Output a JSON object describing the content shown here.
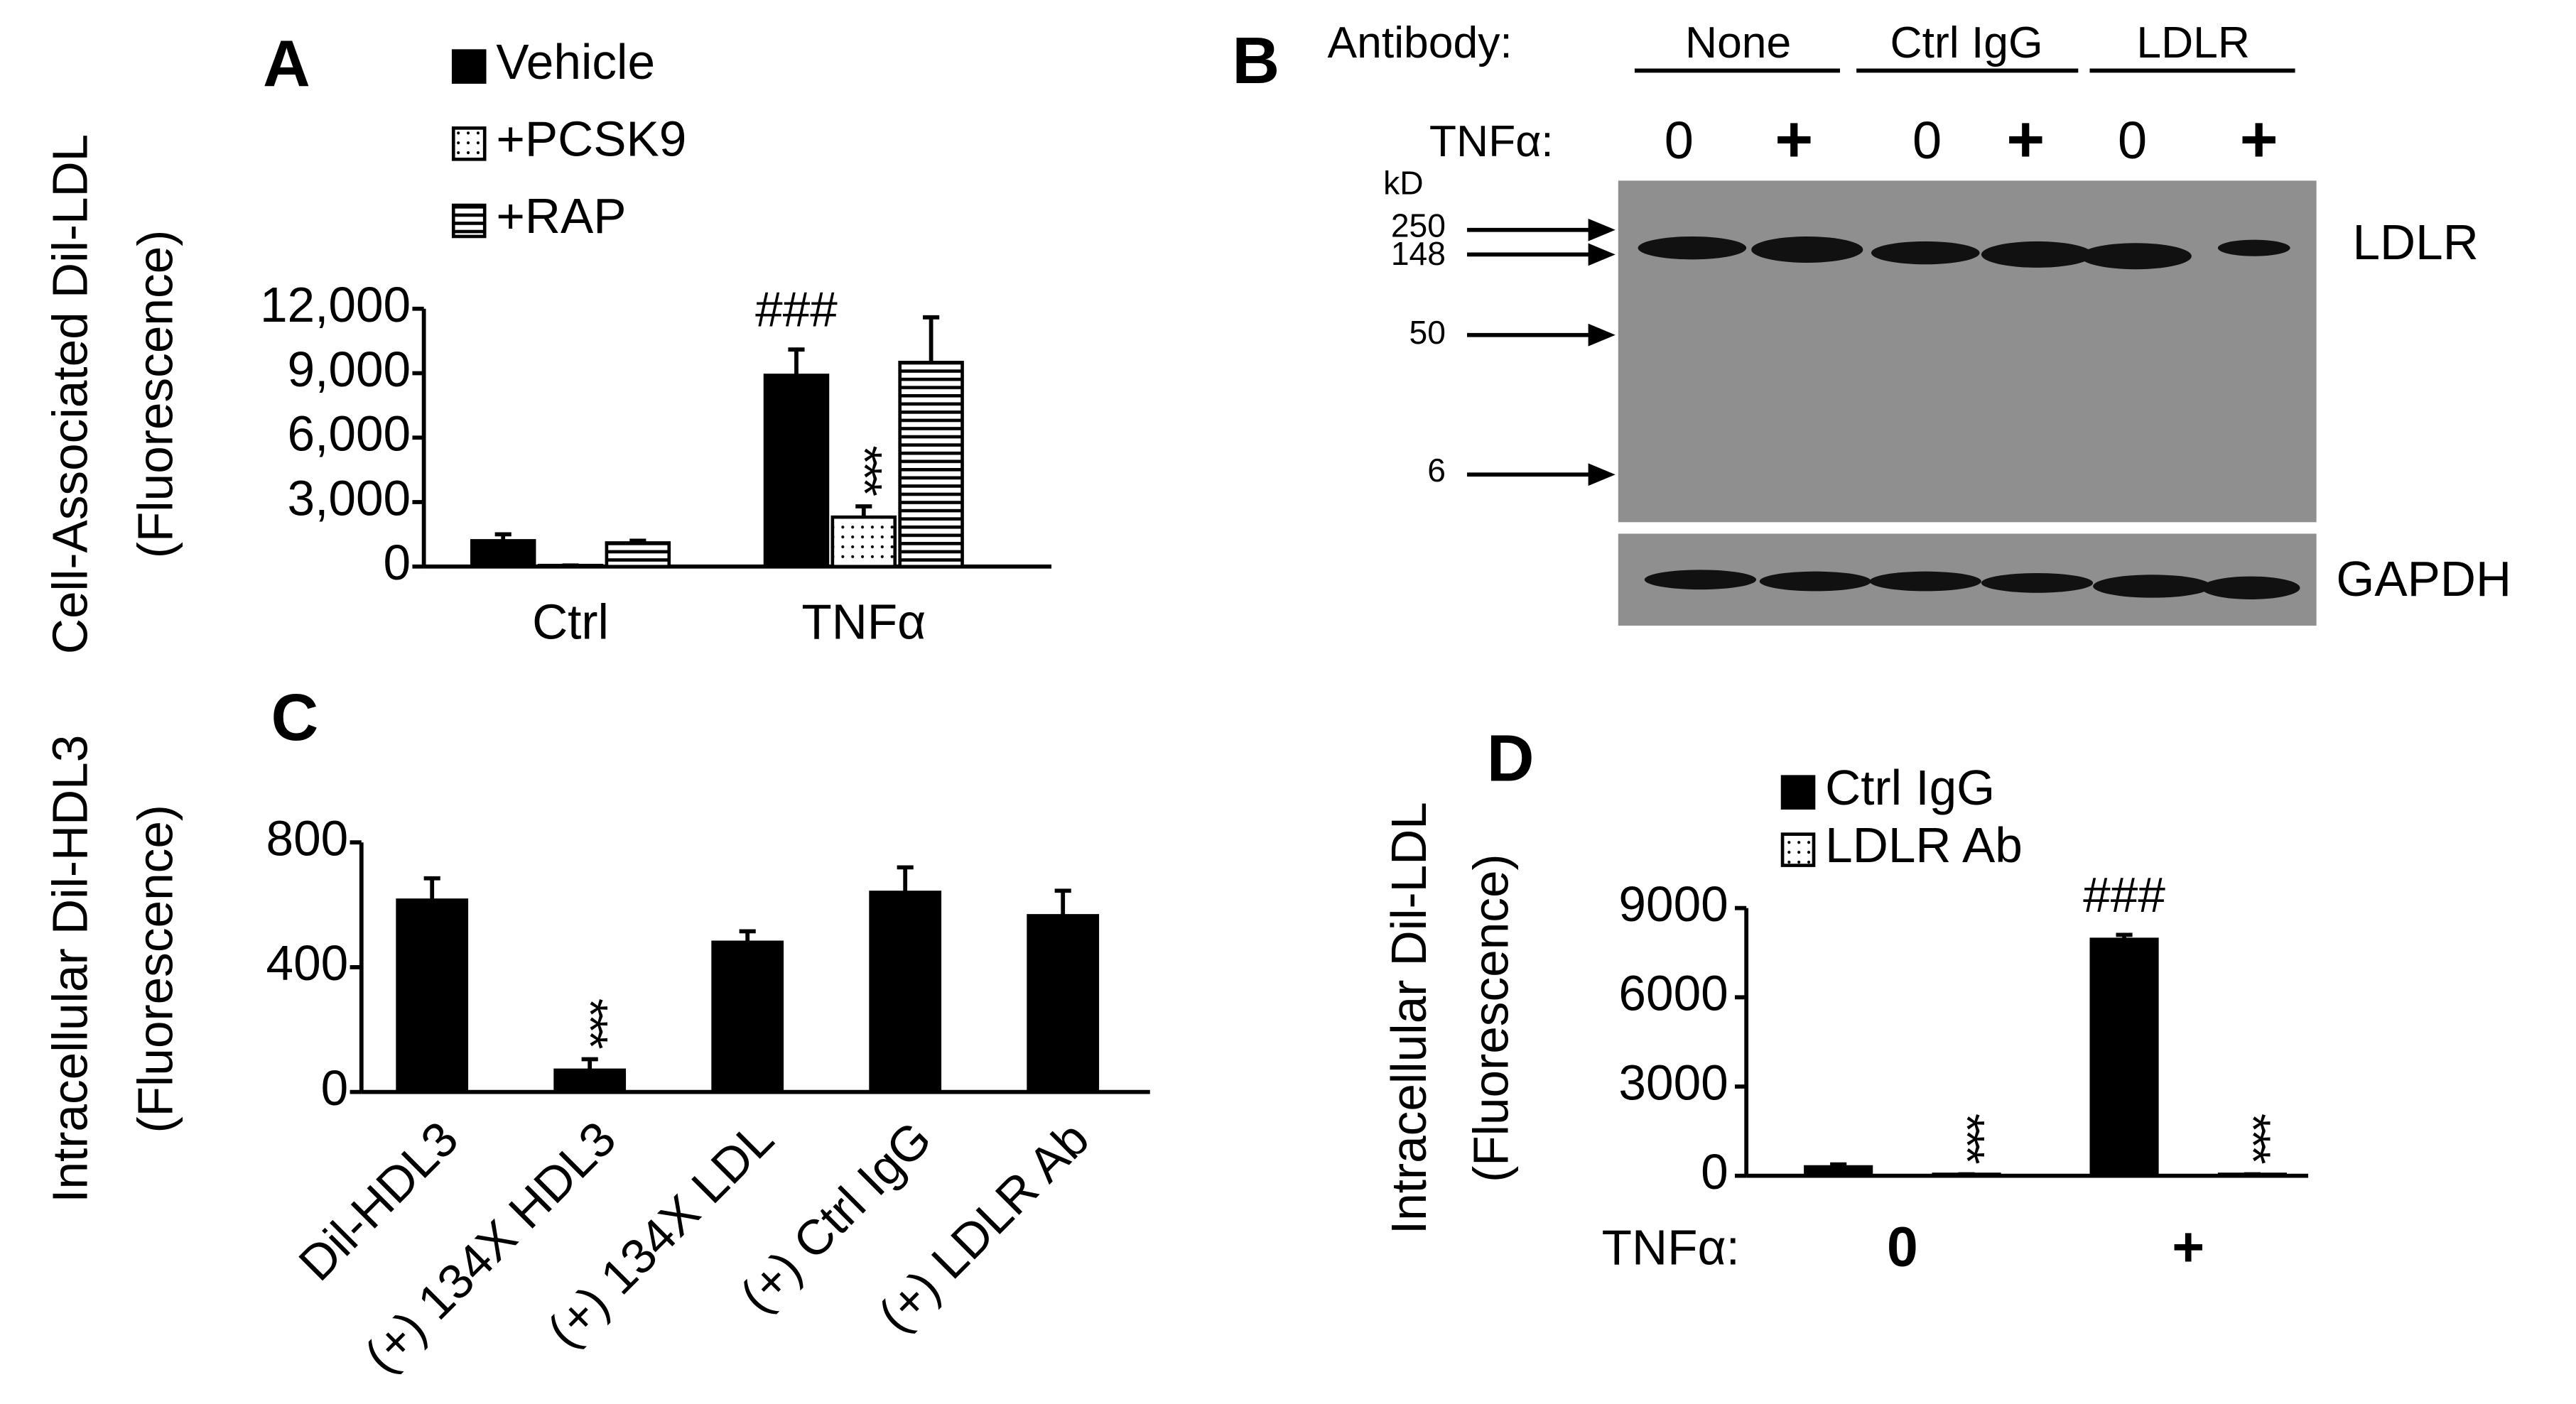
{
  "chart_data": [
    {
      "type": "bar",
      "title": "A",
      "y_label": [
        "Cell-Associated Dil-LDL",
        "(Fluorescence)"
      ],
      "categories": [
        "Ctrl",
        "TNFα"
      ],
      "series": [
        {
          "name": "Vehicle",
          "color": "#000000",
          "fill": "solid",
          "values": [
            1200,
            8900
          ],
          "errors": [
            300,
            1200
          ]
        },
        {
          "name": "+PCSK9",
          "color": "#000000",
          "fill": "dots",
          "values": [
            50,
            2300
          ],
          "errors": [
            0,
            500
          ]
        },
        {
          "name": "+RAP",
          "color": "#000000",
          "fill": "hstripes",
          "values": [
            1100,
            9500
          ],
          "errors": [
            100,
            2100
          ]
        }
      ],
      "annotations": [
        {
          "text": "###",
          "series": "Vehicle",
          "category": "TNFα",
          "orientation": "horizontal"
        },
        {
          "text": "***",
          "series": "+PCSK9",
          "category": "TNFα",
          "orientation": "vertical"
        }
      ],
      "ylim": [
        0,
        12000
      ],
      "yticks": [
        0,
        {
          "value": 3000,
          "label": "3,000"
        },
        {
          "value": 6000,
          "label": "6,000"
        },
        {
          "value": 9000,
          "label": "9,000"
        },
        {
          "value": 12000,
          "label": "12,000"
        }
      ],
      "legend": "top-left"
    },
    {
      "type": "bar",
      "title": "C",
      "y_label": [
        "Intracellular  Dil-HDL3",
        "(Fluorescence)"
      ],
      "categories": [
        "Dil-HDL3",
        "(+) 134X HDL3",
        "(+) 134X LDL",
        "(+) Ctrl IgG",
        "(+) LDLR Ab"
      ],
      "values": [
        615,
        70,
        480,
        640,
        565
      ],
      "errors": [
        70,
        35,
        35,
        80,
        80
      ],
      "color": "#000000",
      "annotations": [
        {
          "text": "***",
          "category": "(+) 134X HDL3",
          "orientation": "vertical"
        }
      ],
      "ylim": [
        0,
        800
      ],
      "yticks": [
        0,
        400,
        800
      ]
    },
    {
      "type": "bar",
      "title": "D",
      "y_label": [
        "Intracellular  Dil-LDL",
        "(Fluorescence)"
      ],
      "x_label": "TNFα:",
      "categories": [
        "0",
        "+"
      ],
      "series": [
        {
          "name": "Ctrl IgG",
          "color": "#000000",
          "fill": "solid",
          "values": [
            300,
            7950
          ],
          "errors": [
            80,
            150
          ]
        },
        {
          "name": "LDLR Ab",
          "color": "#000000",
          "fill": "dots",
          "values": [
            50,
            50
          ],
          "errors": [
            0,
            0
          ]
        }
      ],
      "annotations": [
        {
          "text": "###",
          "series": "Ctrl IgG",
          "category": "+",
          "orientation": "horizontal"
        },
        {
          "text": "***",
          "series": "LDLR Ab",
          "category": "0",
          "orientation": "vertical"
        },
        {
          "text": "***",
          "series": "LDLR Ab",
          "category": "+",
          "orientation": "vertical"
        }
      ],
      "ylim": [
        0,
        9000
      ],
      "yticks": [
        0,
        3000,
        6000,
        9000
      ],
      "legend": "top-left"
    }
  ],
  "blot": {
    "title": "B",
    "antibody_label": "Antibody:",
    "groups": [
      "None",
      "Ctrl IgG",
      "LDLR"
    ],
    "tnf_label": "TNFα:",
    "lanes": [
      "0",
      "+",
      "0",
      "+",
      "0",
      "+"
    ],
    "kd_label": "kD",
    "markers": [
      "250",
      "148",
      "50",
      "6"
    ],
    "bands": [
      "LDLR",
      "GAPDH"
    ]
  }
}
